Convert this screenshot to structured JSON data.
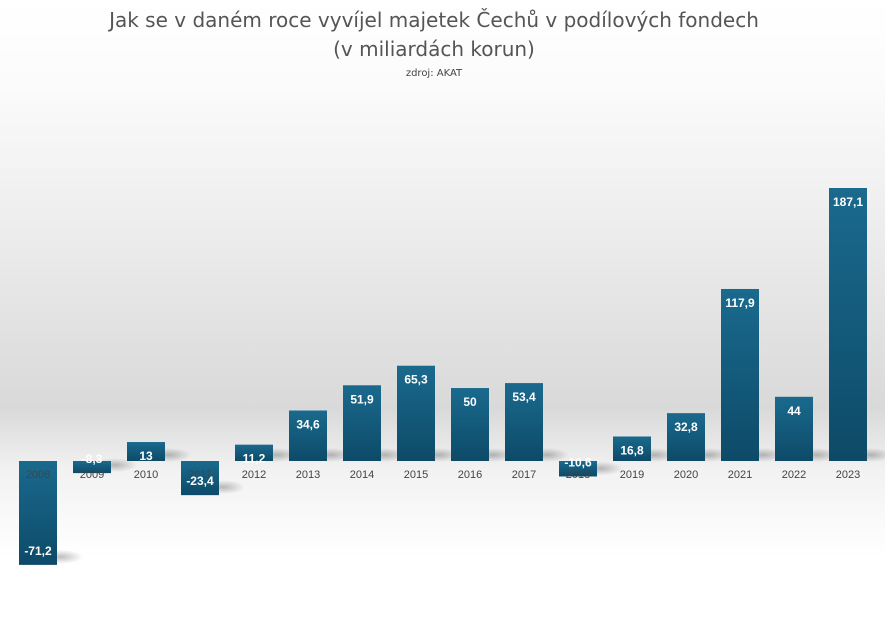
{
  "chart_data": {
    "type": "bar",
    "title_lines": [
      "Jak se v daném roce vyvíjel majetek Čechů v podílových fondech",
      "(v miliardách korun)"
    ],
    "source": "zdroj: AKAT",
    "xlabel": "",
    "ylabel": "",
    "categories": [
      "2008",
      "2009",
      "2010",
      "2011",
      "2012",
      "2013",
      "2014",
      "2015",
      "2016",
      "2017",
      "2018",
      "2019",
      "2020",
      "2021",
      "2022",
      "2023"
    ],
    "values": [
      -71.2,
      -8.3,
      13,
      -23.4,
      11.2,
      34.6,
      51.9,
      65.3,
      50,
      53.4,
      -10.6,
      16.8,
      32.8,
      117.9,
      44,
      187.1
    ],
    "labels": [
      "-71,2",
      "-8,3",
      "13",
      "-23,4",
      "11,2",
      "34,6",
      "51,9",
      "65,3",
      "50",
      "53,4",
      "-10,6",
      "16,8",
      "32,8",
      "117,9",
      "44",
      "187,1"
    ],
    "ylim": [
      -80,
      200
    ],
    "grid": false,
    "legend": "none",
    "colors": {
      "bar_top": "#1a6a8e",
      "bar_bottom": "#0d4a68",
      "label": "#ffffff",
      "tick": "#444444",
      "title": "#555555"
    }
  }
}
